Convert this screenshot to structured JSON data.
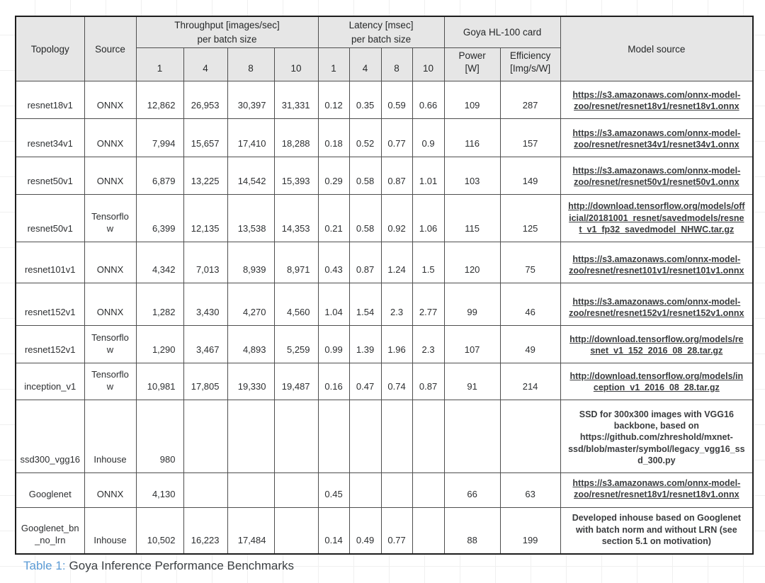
{
  "caption": {
    "label": "Table 1:",
    "text": "Goya Inference Performance Benchmarks",
    "label_color": "#5b9bd5",
    "text_color": "#3c4043"
  },
  "table": {
    "colors": {
      "header_bg": "#e6e6e6",
      "inner_border": "#4e4e4e",
      "outer_border": "#1d1d1d",
      "text": "#2d2f31"
    },
    "header": {
      "topology": "Topology",
      "source": "Source",
      "throughput_group": {
        "line1": "Throughput [images/sec]",
        "line2": "per batch size"
      },
      "latency_group": {
        "line1": "Latency [msec]",
        "line2": "per batch size"
      },
      "goya_group": "Goya HL-100 card",
      "throughput_batches": [
        "1",
        "4",
        "8",
        "10"
      ],
      "latency_batches": [
        "1",
        "4",
        "8",
        "10"
      ],
      "power": {
        "line1": "Power",
        "line2": "[W]"
      },
      "efficiency": {
        "line1": "Efficiency",
        "line2": "[Img/s/W]"
      },
      "model_source": "Model source"
    },
    "rows": [
      {
        "topology": "resnet18v1",
        "source": "ONNX",
        "throughput": [
          "12,862",
          "26,953",
          "30,397",
          "31,331"
        ],
        "latency": [
          "0.12",
          "0.35",
          "0.59",
          "0.66"
        ],
        "power": "109",
        "efficiency": "287",
        "model_source": "https://s3.amazonaws.com/onnx-model-zoo/resnet/resnet18v1/resnet18v1.onnx",
        "model_source_is_link": true
      },
      {
        "topology": "resnet34v1",
        "source": "ONNX",
        "throughput": [
          "7,994",
          "15,657",
          "17,410",
          "18,288"
        ],
        "latency": [
          "0.18",
          "0.52",
          "0.77",
          "0.9"
        ],
        "power": "116",
        "efficiency": "157",
        "model_source": "https://s3.amazonaws.com/onnx-model-zoo/resnet/resnet34v1/resnet34v1.onnx",
        "model_source_is_link": true
      },
      {
        "topology": "resnet50v1",
        "source": "ONNX",
        "throughput": [
          "6,879",
          "13,225",
          "14,542",
          "15,393"
        ],
        "latency": [
          "0.29",
          "0.58",
          "0.87",
          "1.01"
        ],
        "power": "103",
        "efficiency": "149",
        "model_source": "https://s3.amazonaws.com/onnx-model-zoo/resnet/resnet50v1/resnet50v1.onnx",
        "model_source_is_link": true
      },
      {
        "topology": "resnet50v1",
        "source": "Tensorflow",
        "throughput": [
          "6,399",
          "12,135",
          "13,538",
          "14,353"
        ],
        "latency": [
          "0.21",
          "0.58",
          "0.92",
          "1.06"
        ],
        "power": "115",
        "efficiency": "125",
        "model_source": "http://download.tensorflow.org/models/official/20181001_resnet/savedmodels/resnet_v1_fp32_savedmodel_NHWC.tar.gz",
        "model_source_is_link": true
      },
      {
        "topology": "resnet101v1",
        "source": "ONNX",
        "throughput": [
          "4,342",
          "7,013",
          "8,939",
          "8,971"
        ],
        "latency": [
          "0.43",
          "0.87",
          "1.24",
          "1.5"
        ],
        "power": "120",
        "efficiency": "75",
        "model_source": "https://s3.amazonaws.com/onnx-model-zoo/resnet/resnet101v1/resnet101v1.onnx",
        "model_source_is_link": true
      },
      {
        "topology": "resnet152v1",
        "source": "ONNX",
        "throughput": [
          "1,282",
          "3,430",
          "4,270",
          "4,560"
        ],
        "latency": [
          "1.04",
          "1.54",
          "2.3",
          "2.77"
        ],
        "power": "99",
        "efficiency": "46",
        "model_source": "https://s3.amazonaws.com/onnx-model-zoo/resnet/resnet152v1/resnet152v1.onnx",
        "model_source_is_link": true
      },
      {
        "topology": "resnet152v1",
        "source": "Tensorflow",
        "throughput": [
          "1,290",
          "3,467",
          "4,893",
          "5,259"
        ],
        "latency": [
          "0.99",
          "1.39",
          "1.96",
          "2.3"
        ],
        "power": "107",
        "efficiency": "49",
        "model_source": "http://download.tensorflow.org/models/resnet_v1_152_2016_08_28.tar.gz",
        "model_source_is_link": true
      },
      {
        "topology": "inception_v1",
        "source": "Tensorflow",
        "throughput": [
          "10,981",
          "17,805",
          "19,330",
          "19,487"
        ],
        "latency": [
          "0.16",
          "0.47",
          "0.74",
          "0.87"
        ],
        "power": "91",
        "efficiency": "214",
        "model_source": "http://download.tensorflow.org/models/inception_v1_2016_08_28.tar.gz",
        "model_source_is_link": true
      },
      {
        "topology": "ssd300_vgg16",
        "source": "Inhouse",
        "throughput": [
          "980",
          "",
          "",
          ""
        ],
        "latency": [
          "",
          "",
          "",
          ""
        ],
        "power": "",
        "efficiency": "",
        "model_source": "SSD for 300x300 images with VGG16 backbone, based on https://github.com/zhreshold/mxnet-ssd/blob/master/symbol/legacy_vgg16_ssd_300.py",
        "model_source_is_link": false
      },
      {
        "topology": "Googlenet",
        "source": "ONNX",
        "throughput": [
          "4,130",
          "",
          "",
          ""
        ],
        "latency": [
          "0.45",
          "",
          "",
          ""
        ],
        "power": "66",
        "efficiency": "63",
        "model_source": "https://s3.amazonaws.com/onnx-model-zoo/resnet/resnet18v1/resnet18v1.onnx",
        "model_source_is_link": true
      },
      {
        "topology": "Googlenet_bn_no_lrn",
        "source": "Inhouse",
        "throughput": [
          "10,502",
          "16,223",
          "17,484",
          ""
        ],
        "latency": [
          "0.14",
          "0.49",
          "0.77",
          ""
        ],
        "power": "88",
        "efficiency": "199",
        "model_source": "Developed inhouse based on Googlenet with batch norm and without LRN (see section 5.1 on motivation)",
        "model_source_is_link": false
      }
    ]
  }
}
